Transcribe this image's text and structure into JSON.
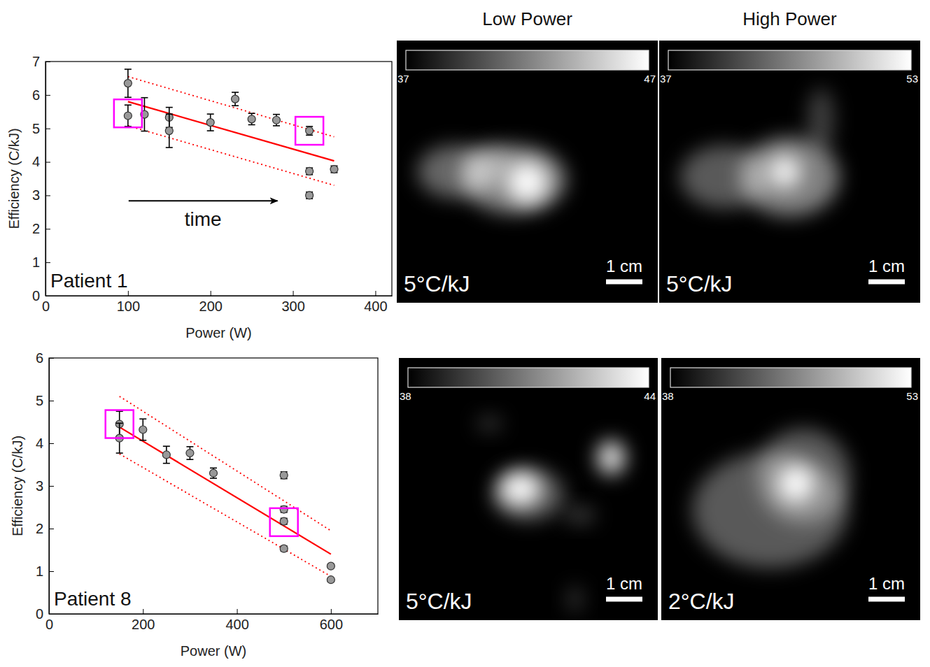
{
  "chart_data": [
    {
      "type": "scatter",
      "title": "Patient 1",
      "x_label": "Power (W)",
      "y_label": "Efficiency (C/kJ)",
      "annotation": "time",
      "xlim": [
        0,
        420
      ],
      "xticks": [
        0,
        100,
        200,
        300,
        400
      ],
      "ylim": [
        0,
        7
      ],
      "yticks": [
        0,
        1,
        2,
        3,
        4,
        5,
        6,
        7
      ],
      "series": [
        {
          "type": "scatter",
          "marker": "circle",
          "color": "#999999",
          "x": [
            100,
            100,
            120,
            150,
            150,
            200,
            230,
            250,
            280,
            320,
            320,
            320,
            350
          ],
          "values": [
            6.35,
            5.38,
            5.42,
            5.33,
            4.93,
            5.18,
            5.88,
            5.28,
            5.25,
            4.93,
            3.72,
            3.0,
            3.78
          ],
          "errors": [
            0.42,
            0.32,
            0.5,
            0.3,
            0.5,
            0.25,
            0.2,
            0.17,
            0.17,
            0.13,
            0.1,
            0.1,
            0.1
          ]
        },
        {
          "type": "line",
          "line_style": "solid",
          "color": "#ff0000",
          "x": [
            100,
            350
          ],
          "values": [
            5.8,
            4.03
          ]
        },
        {
          "type": "line",
          "line_style": "dotted",
          "color": "#ff0000",
          "x": [
            100,
            350
          ],
          "values": [
            6.55,
            4.75
          ]
        },
        {
          "type": "line",
          "line_style": "dotted",
          "color": "#ff0000",
          "x": [
            100,
            350
          ],
          "values": [
            5.08,
            3.3
          ]
        },
        {
          "type": "scatter",
          "marker": "square",
          "color": "#ff00ff",
          "x": [
            100,
            320
          ],
          "values": [
            5.45,
            4.93
          ]
        }
      ]
    },
    {
      "type": "scatter",
      "title": "Patient 8",
      "x_label": "Power (W)",
      "y_label": "Efficiency (C/kJ)",
      "xlim": [
        0,
        700
      ],
      "xticks": [
        0,
        200,
        400,
        600
      ],
      "ylim": [
        0,
        6
      ],
      "yticks": [
        0,
        1,
        2,
        3,
        4,
        5,
        6
      ],
      "series": [
        {
          "type": "scatter",
          "marker": "circle",
          "color": "#999999",
          "x": [
            150,
            150,
            200,
            250,
            300,
            350,
            500,
            500,
            500,
            500,
            600,
            600
          ],
          "values": [
            4.45,
            4.12,
            4.32,
            3.73,
            3.77,
            3.3,
            3.25,
            2.45,
            2.17,
            1.53,
            1.12,
            0.8
          ],
          "errors": [
            0.3,
            0.35,
            0.25,
            0.2,
            0.15,
            0.12,
            0.08,
            0.07,
            0.07,
            0.06,
            0.04,
            0.04
          ]
        },
        {
          "type": "line",
          "line_style": "solid",
          "color": "#ff0000",
          "x": [
            150,
            600
          ],
          "values": [
            4.38,
            1.4
          ]
        },
        {
          "type": "line",
          "line_style": "dotted",
          "color": "#ff0000",
          "x": [
            150,
            600
          ],
          "values": [
            5.1,
            1.95
          ]
        },
        {
          "type": "line",
          "line_style": "dotted",
          "color": "#ff0000",
          "x": [
            150,
            600
          ],
          "values": [
            3.75,
            0.88
          ]
        },
        {
          "type": "scatter",
          "marker": "square",
          "color": "#ff00ff",
          "x": [
            150,
            500
          ],
          "values": [
            4.45,
            2.15
          ]
        }
      ]
    },
    {
      "type": "image",
      "title": "Low Power",
      "colorbar_range": [
        37,
        47
      ],
      "colorbar_ticks": [
        37,
        47
      ],
      "annotation": "5°C/kJ",
      "scale_bar_label": "1 cm"
    },
    {
      "type": "image",
      "title": "High Power",
      "colorbar_range": [
        37,
        53
      ],
      "colorbar_ticks": [
        37,
        53
      ],
      "annotation": "5°C/kJ",
      "scale_bar_label": "1 cm"
    },
    {
      "type": "image",
      "colorbar_range": [
        38,
        44
      ],
      "colorbar_ticks": [
        38,
        44
      ],
      "annotation": "5°C/kJ",
      "scale_bar_label": "1 cm"
    },
    {
      "type": "image",
      "colorbar_range": [
        38,
        53
      ],
      "colorbar_ticks": [
        38,
        53
      ],
      "annotation": "2°C/kJ",
      "scale_bar_label": "1 cm"
    }
  ]
}
